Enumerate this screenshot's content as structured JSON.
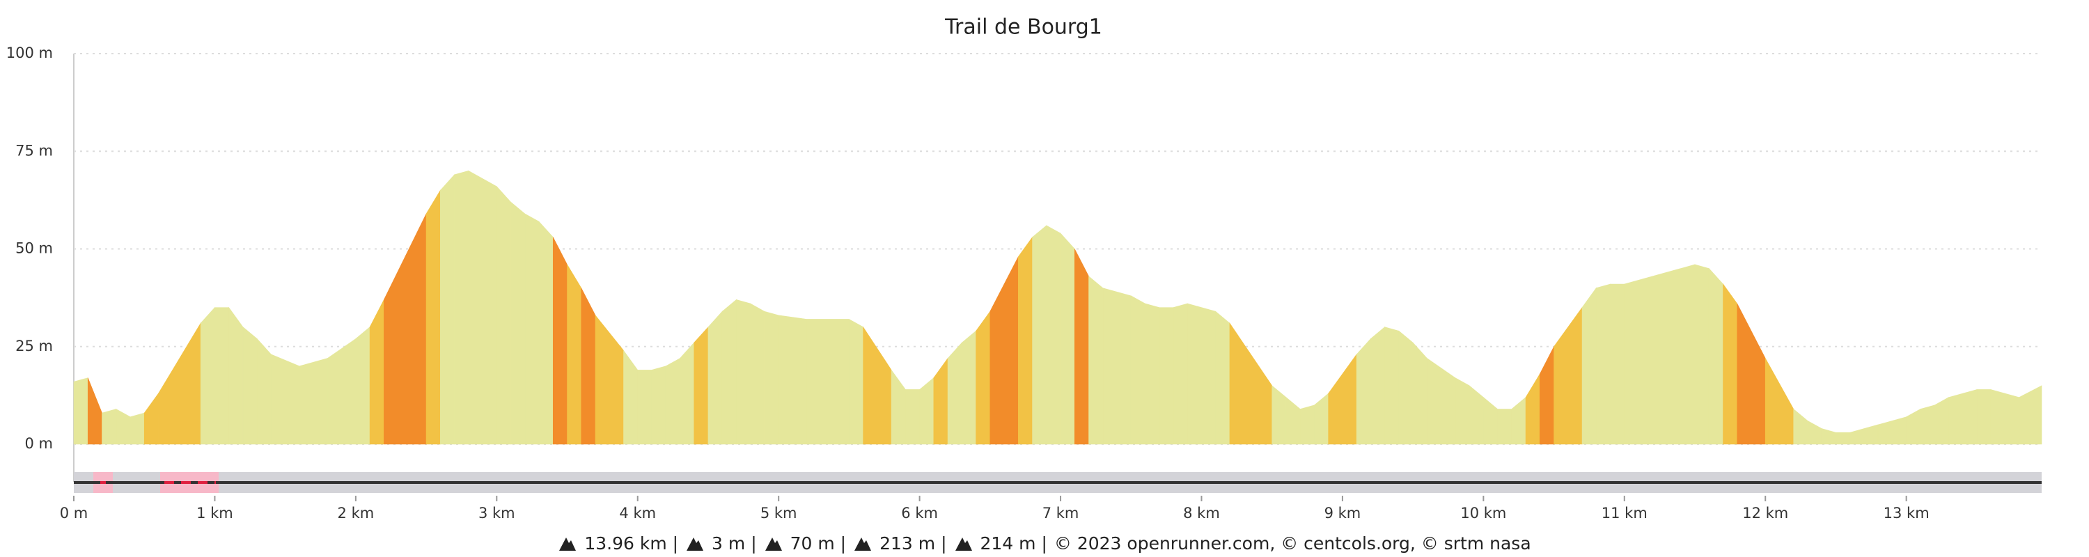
{
  "chart_data": {
    "type": "elevation",
    "title": "Trail de Bourg1",
    "xlim": [
      0,
      13.96
    ],
    "ylim": [
      0,
      100
    ],
    "xticks": [
      {
        "value": 0,
        "label": "0 m"
      },
      {
        "value": 1,
        "label": "1 km"
      },
      {
        "value": 2,
        "label": "2 km"
      },
      {
        "value": 3,
        "label": "3 km"
      },
      {
        "value": 4,
        "label": "4 km"
      },
      {
        "value": 5,
        "label": "5 km"
      },
      {
        "value": 6,
        "label": "6 km"
      },
      {
        "value": 7,
        "label": "7 km"
      },
      {
        "value": 8,
        "label": "8 km"
      },
      {
        "value": 9,
        "label": "9 km"
      },
      {
        "value": 10,
        "label": "10 km"
      },
      {
        "value": 11,
        "label": "11 km"
      },
      {
        "value": 12,
        "label": "12 km"
      },
      {
        "value": 13,
        "label": "13 km"
      }
    ],
    "yticks": [
      {
        "value": 0,
        "label": "0 m"
      },
      {
        "value": 25,
        "label": "25 m"
      },
      {
        "value": 50,
        "label": "50 m"
      },
      {
        "value": 75,
        "label": "75 m"
      },
      {
        "value": 100,
        "label": "100 m"
      }
    ],
    "grid": true,
    "series": [
      {
        "x": [
          0,
          0.1,
          0.2,
          0.3,
          0.4,
          0.5,
          0.6,
          0.9,
          1.0,
          1.1,
          1.2,
          1.3,
          1.4,
          1.6,
          1.8,
          2.0,
          2.1,
          2.2,
          2.5,
          2.6,
          2.7,
          2.8,
          3.0,
          3.1,
          3.2,
          3.3,
          3.4,
          3.5,
          3.6,
          3.7,
          3.9,
          4.0,
          4.1,
          4.2,
          4.3,
          4.4,
          4.5,
          4.6,
          4.7,
          4.8,
          4.9,
          5.0,
          5.2,
          5.5,
          5.6,
          5.8,
          5.9,
          6.0,
          6.1,
          6.2,
          6.3,
          6.4,
          6.5,
          6.7,
          6.8,
          6.9,
          7.0,
          7.1,
          7.2,
          7.3,
          7.5,
          7.6,
          7.7,
          7.8,
          7.9,
          8.1,
          8.2,
          8.5,
          8.6,
          8.7,
          8.8,
          8.9,
          9.1,
          9.2,
          9.3,
          9.4,
          9.5,
          9.6,
          9.8,
          9.9,
          10.0,
          10.1,
          10.2,
          10.3,
          10.4,
          10.5,
          10.7,
          10.8,
          10.9,
          11.0,
          11.5,
          11.6,
          11.7,
          11.8,
          12.0,
          12.2,
          12.3,
          12.4,
          12.5,
          12.6,
          12.8,
          13.0,
          13.1,
          13.2,
          13.3,
          13.5,
          13.6,
          13.8,
          13.96
        ],
        "values": [
          16,
          17,
          8,
          9,
          7,
          8,
          13,
          31,
          35,
          35,
          30,
          27,
          23,
          20,
          22,
          27,
          30,
          37,
          59,
          65,
          69,
          70,
          66,
          62,
          59,
          57,
          53,
          46,
          40,
          33,
          24,
          19,
          19,
          20,
          22,
          26,
          30,
          34,
          37,
          36,
          34,
          33,
          32,
          32,
          30,
          19,
          14,
          14,
          17,
          22,
          26,
          29,
          34,
          48,
          53,
          56,
          54,
          50,
          43,
          40,
          38,
          36,
          35,
          35,
          36,
          34,
          31,
          15,
          12,
          9,
          10,
          13,
          23,
          27,
          30,
          29,
          26,
          22,
          17,
          15,
          12,
          9,
          9,
          12,
          18,
          25,
          35,
          40,
          41,
          41,
          46,
          45,
          41,
          36,
          22,
          9,
          6,
          4,
          3,
          3,
          5,
          7,
          9,
          10,
          12,
          14,
          14,
          12,
          15
        ],
        "colors": [
          "#e5e79b",
          "#e5e79b",
          "#f28c2a",
          "#e5e79b",
          "#e5e79b",
          "#e5e79b",
          "#f2c245",
          "#f2c245",
          "#e5e79b",
          "#e5e79b",
          "#e5e79b",
          "#e5e79b",
          "#e5e79b",
          "#e5e79b",
          "#e5e79b",
          "#e5e79b",
          "#e5e79b",
          "#f2c245",
          "#f28c2a",
          "#f2c245",
          "#e5e79b",
          "#e5e79b",
          "#e5e79b",
          "#e5e79b",
          "#e5e79b",
          "#e5e79b",
          "#e5e79b",
          "#f28c2a",
          "#f2c245",
          "#f28c2a",
          "#f2c245",
          "#e5e79b",
          "#e5e79b",
          "#e5e79b",
          "#e5e79b",
          "#e5e79b",
          "#f2c245",
          "#e5e79b",
          "#e5e79b",
          "#e5e79b",
          "#e5e79b",
          "#e5e79b",
          "#e5e79b",
          "#e5e79b",
          "#e5e79b",
          "#f2c245",
          "#e5e79b",
          "#e5e79b",
          "#e5e79b",
          "#f2c245",
          "#e5e79b",
          "#e5e79b",
          "#f2c245",
          "#f28c2a",
          "#f2c245",
          "#e5e79b",
          "#e5e79b",
          "#e5e79b",
          "#f28c2a",
          "#e5e79b",
          "#e5e79b",
          "#e5e79b",
          "#e5e79b",
          "#e5e79b",
          "#e5e79b",
          "#e5e79b",
          "#e5e79b",
          "#f2c245",
          "#e5e79b",
          "#e5e79b",
          "#e5e79b",
          "#e5e79b",
          "#f2c245",
          "#e5e79b",
          "#e5e79b",
          "#e5e79b",
          "#e5e79b",
          "#e5e79b",
          "#e5e79b",
          "#e5e79b",
          "#e5e79b",
          "#e5e79b",
          "#e5e79b",
          "#e5e79b",
          "#f2c245",
          "#f28c2a",
          "#f2c245",
          "#e5e79b",
          "#e5e79b",
          "#e5e79b",
          "#e5e79b",
          "#e5e79b",
          "#e5e79b",
          "#f2c245",
          "#f28c2a",
          "#f2c245",
          "#e5e79b",
          "#e5e79b",
          "#e5e79b",
          "#e5e79b",
          "#e5e79b",
          "#e5e79b",
          "#e5e79b",
          "#e5e79b",
          "#e5e79b",
          "#e5e79b",
          "#e5e79b",
          "#e5e79b",
          "#e5e79b"
        ]
      }
    ],
    "footer_stats": [
      "13.96 km |",
      "3 m |",
      "70 m |",
      "213 m |",
      "214 m |"
    ],
    "credits": "© 2023 openrunner.com, © centcols.org, © srtm nasa"
  }
}
